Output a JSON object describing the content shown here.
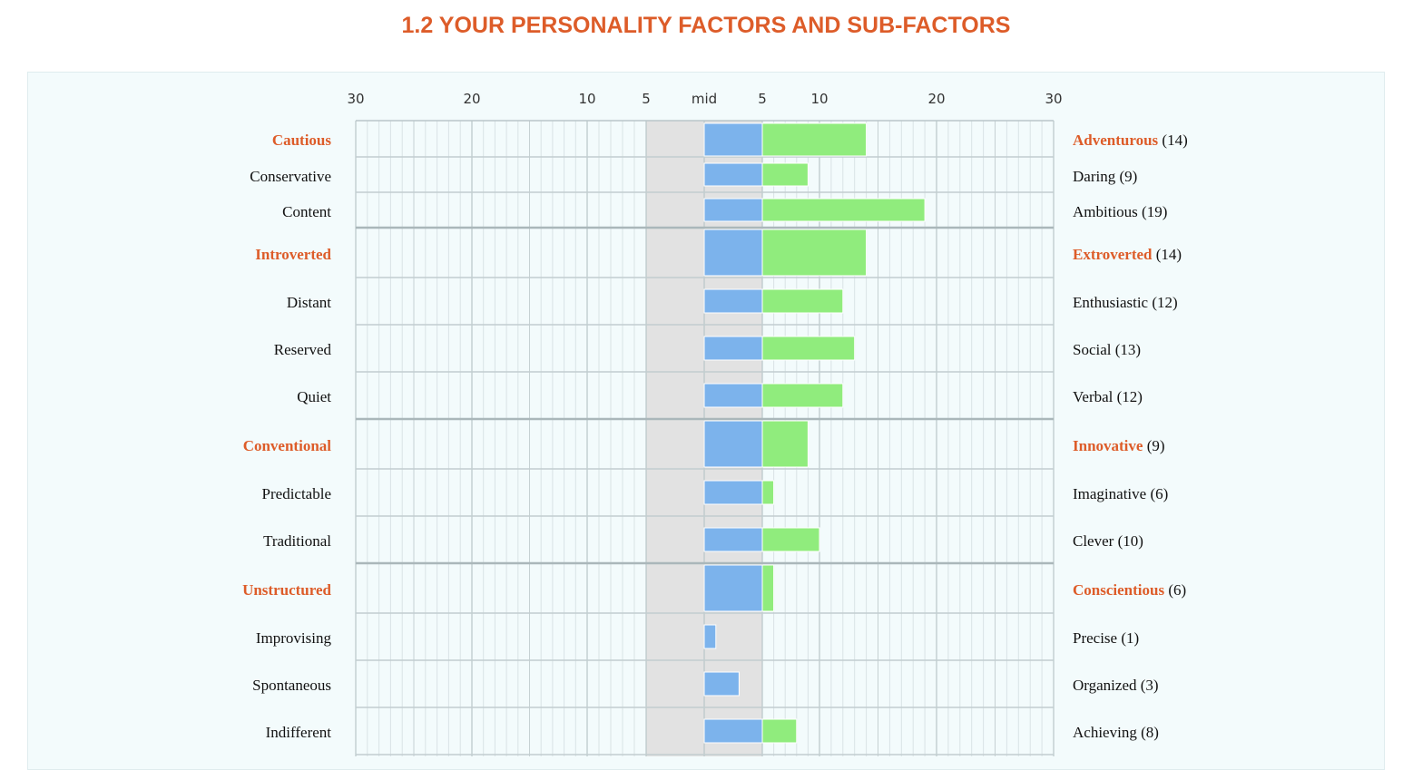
{
  "title": "1.2 YOUR PERSONALITY FACTORS AND SUB-FACTORS",
  "colors": {
    "accent": "#dd5c29",
    "mid_bar": "#7cb3ec",
    "score_bar": "#90ec7d",
    "mid_band": "#e2e2e2"
  },
  "chart_data": {
    "type": "bar",
    "orientation": "horizontal",
    "xlim": [
      -30,
      30
    ],
    "ticks": [
      {
        "value": -30,
        "label": "30"
      },
      {
        "value": -20,
        "label": "20"
      },
      {
        "value": -10,
        "label": "10"
      },
      {
        "value": -5,
        "label": "5"
      },
      {
        "value": 0,
        "label": "mid"
      },
      {
        "value": 5,
        "label": "5"
      },
      {
        "value": 10,
        "label": "10"
      },
      {
        "value": 20,
        "label": "20"
      },
      {
        "value": 30,
        "label": "30"
      }
    ],
    "mid_band": [
      -5,
      5
    ],
    "rows": [
      {
        "left": "Cautious",
        "right": "Adventurous",
        "score": "(14)",
        "value": 14,
        "mid": 5,
        "factor": true
      },
      {
        "left": "Conservative",
        "right": "Daring",
        "score": "(9)",
        "value": 9,
        "mid": 5,
        "factor": false
      },
      {
        "left": "Content",
        "right": "Ambitious",
        "score": "(19)",
        "value": 19,
        "mid": 5,
        "factor": false
      },
      {
        "left": "Introverted",
        "right": "Extroverted",
        "score": "(14)",
        "value": 14,
        "mid": 5,
        "factor": true
      },
      {
        "left": "Distant",
        "right": "Enthusiastic",
        "score": "(12)",
        "value": 12,
        "mid": 5,
        "factor": false
      },
      {
        "left": "Reserved",
        "right": "Social",
        "score": "(13)",
        "value": 13,
        "mid": 5,
        "factor": false
      },
      {
        "left": "Quiet",
        "right": "Verbal",
        "score": "(12)",
        "value": 12,
        "mid": 5,
        "factor": false
      },
      {
        "left": "Conventional",
        "right": "Innovative",
        "score": "(9)",
        "value": 9,
        "mid": 5,
        "factor": true
      },
      {
        "left": "Predictable",
        "right": "Imaginative",
        "score": "(6)",
        "value": 6,
        "mid": 5,
        "factor": false
      },
      {
        "left": "Traditional",
        "right": "Clever",
        "score": "(10)",
        "value": 10,
        "mid": 5,
        "factor": false
      },
      {
        "left": "Unstructured",
        "right": "Conscientious",
        "score": "(6)",
        "value": 6,
        "mid": 5,
        "factor": true
      },
      {
        "left": "Improvising",
        "right": "Precise",
        "score": "(1)",
        "value": 1,
        "mid": 1,
        "factor": false
      },
      {
        "left": "Spontaneous",
        "right": "Organized",
        "score": "(3)",
        "value": 3,
        "mid": 3,
        "factor": false
      },
      {
        "left": "Indifferent",
        "right": "Achieving",
        "score": "(8)",
        "value": 8,
        "mid": 5,
        "factor": false
      }
    ]
  }
}
